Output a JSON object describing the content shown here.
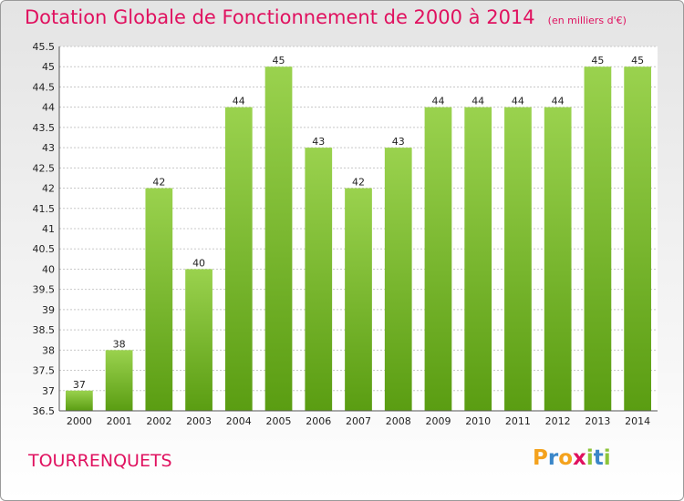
{
  "header": {
    "title": "Dotation Globale de Fonctionnement de 2000 à 2014",
    "subtitle": "(en milliers d'€)"
  },
  "footer": {
    "commune": "TOURRENQUETS",
    "logo_text": "Proxiti"
  },
  "colors": {
    "title": "#e0115f",
    "bar_top": "#9ad24e",
    "bar_bottom": "#5a9d12",
    "grid": "#c8c8c8",
    "axis": "#555555",
    "logo_letters": [
      "#f4a21d",
      "#3a86c8",
      "#f4a21d",
      "#e0115f",
      "#8cc43a",
      "#3a86c8",
      "#8cc43a"
    ]
  },
  "chart_data": {
    "type": "bar",
    "title": "Dotation Globale de Fonctionnement de 2000 à 2014",
    "subtitle": "(en milliers d'€)",
    "xlabel": "",
    "ylabel": "",
    "categories": [
      "2000",
      "2001",
      "2002",
      "2003",
      "2004",
      "2005",
      "2006",
      "2007",
      "2008",
      "2009",
      "2010",
      "2011",
      "2012",
      "2013",
      "2014"
    ],
    "values": [
      37,
      38,
      42,
      40,
      44,
      45,
      43,
      42,
      43,
      44,
      44,
      44,
      44,
      45,
      45
    ],
    "ylim": [
      36.5,
      45.5
    ],
    "yticks": [
      "36.5",
      "37",
      "37.5",
      "38",
      "38.5",
      "39",
      "39.5",
      "40",
      "40.5",
      "41",
      "41.5",
      "42",
      "42.5",
      "43",
      "43.5",
      "44",
      "44.5",
      "45",
      "45.5"
    ],
    "grid": true,
    "legend": "none"
  }
}
